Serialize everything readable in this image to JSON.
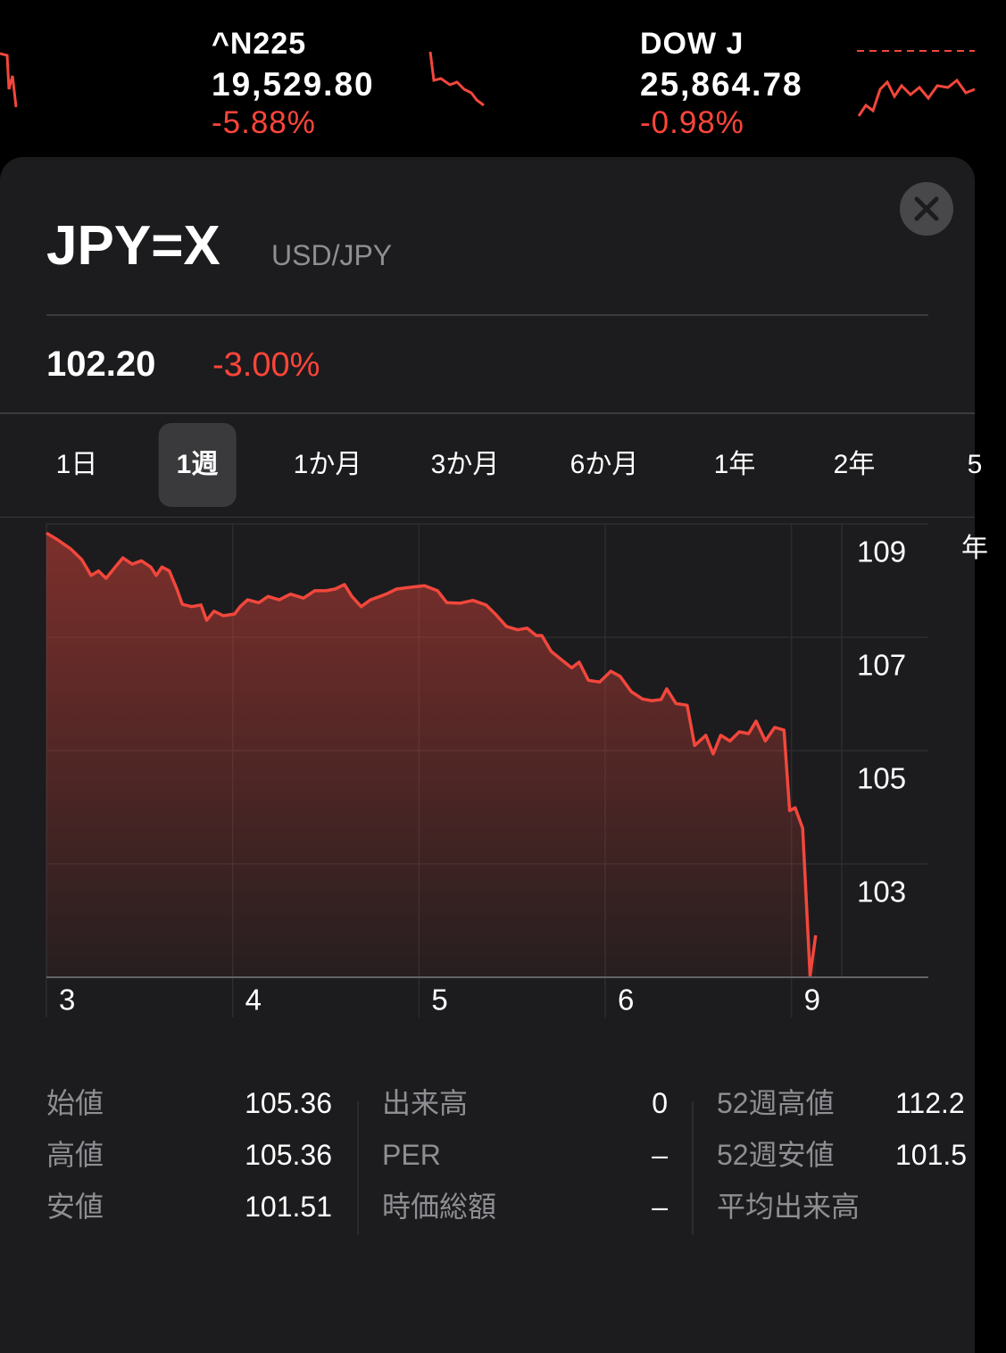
{
  "ticker": {
    "items": [
      {
        "symbol": "^N225",
        "price": "19,529.80",
        "change": "-5.88%"
      },
      {
        "symbol": "DOW J",
        "price": "25,864.78",
        "change": "-0.98%"
      }
    ]
  },
  "header": {
    "symbol": "JPY=X",
    "name": "USD/JPY",
    "price": "102.20",
    "change": "-3.00%"
  },
  "tabs": {
    "items": [
      "1日",
      "1週",
      "1か月",
      "3か月",
      "6か月",
      "1年",
      "2年",
      "5年"
    ],
    "selected": 1
  },
  "chart_data": {
    "type": "line",
    "color": "#f2473c",
    "grid": true,
    "x": [
      0,
      0.06,
      0.13,
      0.19,
      0.24,
      0.28,
      0.32,
      0.36,
      0.41,
      0.46,
      0.51,
      0.56,
      0.59,
      0.62,
      0.66,
      0.7,
      0.73,
      0.78,
      0.83,
      0.86,
      0.9,
      0.95,
      1.01,
      1.04,
      1.08,
      1.14,
      1.19,
      1.25,
      1.31,
      1.38,
      1.44,
      1.5,
      1.55,
      1.6,
      1.64,
      1.69,
      1.74,
      1.79,
      1.83,
      1.88,
      1.95,
      2.03,
      2.1,
      2.15,
      2.22,
      2.29,
      2.36,
      2.41,
      2.47,
      2.53,
      2.58,
      2.63,
      2.66,
      2.71,
      2.77,
      2.82,
      2.86,
      2.91,
      2.97,
      3.03,
      3.08,
      3.14,
      3.2,
      3.25,
      3.3,
      3.33,
      3.38,
      3.44,
      3.48,
      3.54,
      3.58,
      3.62,
      3.67,
      3.72,
      3.77,
      3.81,
      3.86,
      3.91,
      3.96,
      3.99,
      4.02,
      4.06,
      4.1,
      4.13
    ],
    "values": [
      108.84,
      108.72,
      108.56,
      108.37,
      108.09,
      108.17,
      108.04,
      108.2,
      108.4,
      108.29,
      108.35,
      108.24,
      108.09,
      108.24,
      108.17,
      107.85,
      107.58,
      107.54,
      107.57,
      107.3,
      107.46,
      107.38,
      107.41,
      107.54,
      107.66,
      107.61,
      107.72,
      107.66,
      107.76,
      107.69,
      107.82,
      107.82,
      107.85,
      107.93,
      107.72,
      107.54,
      107.66,
      107.72,
      107.77,
      107.85,
      107.88,
      107.91,
      107.82,
      107.61,
      107.6,
      107.65,
      107.57,
      107.41,
      107.19,
      107.13,
      107.16,
      107.03,
      107.03,
      106.75,
      106.59,
      106.46,
      106.56,
      106.24,
      106.21,
      106.4,
      106.31,
      106.04,
      105.91,
      105.88,
      105.9,
      106.09,
      105.83,
      105.8,
      105.09,
      105.27,
      104.94,
      105.27,
      105.17,
      105.33,
      105.3,
      105.52,
      105.17,
      105.41,
      105.36,
      103.94,
      103.99,
      103.63,
      101.03,
      101.74
    ],
    "xlim": [
      0,
      4.27
    ],
    "xticks": [
      {
        "value": 0,
        "label": "3"
      },
      {
        "value": 1,
        "label": "4"
      },
      {
        "value": 2,
        "label": "5"
      },
      {
        "value": 3,
        "label": "6"
      },
      {
        "value": 4,
        "label": "9"
      }
    ],
    "ylim": [
      101,
      109
    ],
    "yticks": [
      109,
      107,
      105,
      103
    ]
  },
  "stats": {
    "columns": [
      [
        {
          "label": "始値",
          "value": "105.36"
        },
        {
          "label": "高値",
          "value": "105.36"
        },
        {
          "label": "安値",
          "value": "101.51"
        }
      ],
      [
        {
          "label": "出来高",
          "value": "0"
        },
        {
          "label": "PER",
          "value": "–"
        },
        {
          "label": "時価総額",
          "value": "–"
        }
      ],
      [
        {
          "label": "52週高値",
          "value": "112.2"
        },
        {
          "label": "52週安値",
          "value": "101.5"
        },
        {
          "label": "平均出来高"
        }
      ]
    ]
  }
}
